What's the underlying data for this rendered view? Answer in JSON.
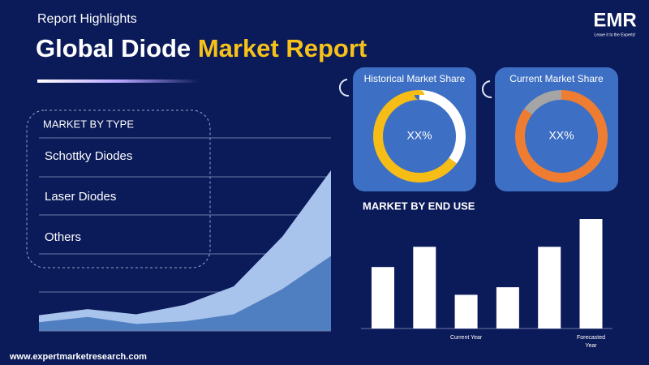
{
  "header": {
    "kicker": "Report Highlights",
    "title_white": "Global Diode",
    "title_yellow": "Market Report"
  },
  "brand": {
    "logo": "EMR",
    "tagline": "Leave it to the Experts!"
  },
  "market_by_type": {
    "heading": "MARKET BY TYPE",
    "items": [
      "Schottky Diodes",
      "Laser Diodes",
      "Others"
    ]
  },
  "chart_data": [
    {
      "type": "area",
      "categories": [
        null,
        null,
        null,
        null,
        null,
        null,
        null
      ],
      "series": [
        {
          "color": "#a9c4ec",
          "values": [
            18,
            25,
            19,
            30,
            51,
            108,
            184
          ]
        },
        {
          "color": "#4f7fc0",
          "values": [
            10,
            16,
            8,
            11,
            19,
            48,
            86
          ]
        }
      ]
    },
    {
      "type": "donut",
      "title": "Historical Market Share",
      "center_label": "XX%",
      "values": [
        35,
        65
      ],
      "colors": [
        "#ffffff",
        "#f6bd16"
      ]
    },
    {
      "type": "donut",
      "title": "Current Market Share",
      "center_label": "XX%",
      "values": [
        85,
        15
      ],
      "colors": [
        "#ee7d31",
        "#a5a5a5"
      ]
    },
    {
      "type": "bar",
      "title": "MARKET BY END USE",
      "categories": [
        null,
        null,
        "Current Year",
        null,
        null,
        "Forecasted Year"
      ],
      "values": [
        73,
        97,
        40,
        49,
        97,
        130
      ],
      "color": "#ffffff"
    }
  ],
  "footer": {
    "url": "www.expertmarketresearch.com"
  }
}
